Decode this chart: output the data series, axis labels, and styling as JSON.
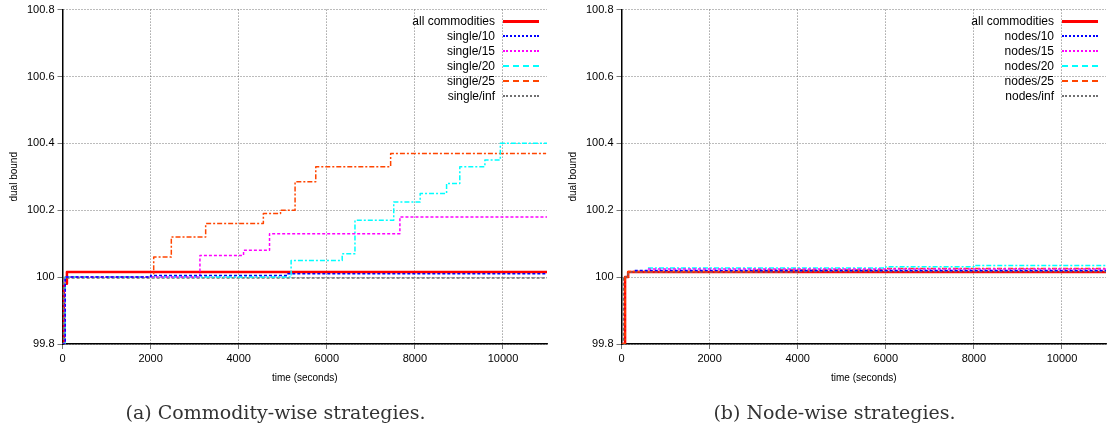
{
  "chart_data": [
    {
      "type": "step",
      "title": "(a) Commodity-wise strategies.",
      "xlabel": "time (seconds)",
      "ylabel": "dual bound",
      "xlim": [
        0,
        11000
      ],
      "xticks": [
        0,
        2000,
        4000,
        6000,
        8000,
        10000
      ],
      "ylim": [
        99.8,
        100.8
      ],
      "yticks": [
        99.8,
        100,
        100.2,
        100.4,
        100.6,
        100.8
      ],
      "grid": true,
      "legend": "top right",
      "marker": "none",
      "series": [
        {
          "name": "all commodities",
          "color": "#ff0000",
          "line_style": "solid",
          "x": [
            0,
            30,
            100,
            11000
          ],
          "values": [
            99.8,
            99.98,
            100.015,
            100.015
          ]
        },
        {
          "name": "single/10",
          "color": "#0000ff",
          "line_style": "dotted",
          "x": [
            0,
            60,
            2000,
            5100,
            11000
          ],
          "values": [
            99.8,
            100,
            100.005,
            100.01,
            100.01
          ]
        },
        {
          "name": "single/15",
          "color": "#ff00ff",
          "line_style": "dotted",
          "x": [
            0,
            60,
            3120,
            4110,
            4700,
            7660,
            11000
          ],
          "values": [
            99.8,
            100,
            100.065,
            100.08,
            100.13,
            100.18,
            100.18
          ]
        },
        {
          "name": "single/20",
          "color": "#00ffff",
          "line_style": "dashed",
          "x": [
            0,
            60,
            5190,
            6350,
            6640,
            7520,
            8120,
            8720,
            9020,
            9590,
            9940,
            11000
          ],
          "values": [
            99.8,
            100,
            100.05,
            100.07,
            100.17,
            100.225,
            100.25,
            100.28,
            100.33,
            100.35,
            100.4,
            100.4
          ]
        },
        {
          "name": "single/25",
          "color": "#ff4500",
          "line_style": "dashed",
          "x": [
            0,
            60,
            2070,
            2470,
            3250,
            4560,
            4950,
            5280,
            5750,
            7450,
            10980
          ],
          "values": [
            99.8,
            100,
            100.06,
            100.12,
            100.16,
            100.19,
            100.2,
            100.285,
            100.33,
            100.37,
            100.37
          ]
        },
        {
          "name": "single/inf",
          "color": "#707070",
          "line_style": "dotted",
          "x": [
            0,
            20,
            11000
          ],
          "values": [
            99.8,
            99.997,
            99.997
          ]
        }
      ]
    },
    {
      "type": "step",
      "title": "(b) Node-wise strategies.",
      "xlabel": "time (seconds)",
      "ylabel": "dual bound",
      "xlim": [
        0,
        11000
      ],
      "xticks": [
        0,
        2000,
        4000,
        6000,
        8000,
        10000
      ],
      "ylim": [
        99.8,
        100.8
      ],
      "yticks": [
        99.8,
        100,
        100.2,
        100.4,
        100.6,
        100.8
      ],
      "grid": true,
      "legend": "top right",
      "marker": "none",
      "series": [
        {
          "name": "all commodities",
          "color": "#ff0000",
          "line_style": "solid",
          "x": [
            0,
            80,
            150,
            11000
          ],
          "values": [
            99.8,
            100,
            100.015,
            100.015
          ]
        },
        {
          "name": "nodes/10",
          "color": "#0000ff",
          "line_style": "dotted",
          "x": [
            300,
            6000,
            11000
          ],
          "values": [
            100.02,
            100.02,
            100.02
          ]
        },
        {
          "name": "nodes/15",
          "color": "#ff00ff",
          "line_style": "dotted",
          "x": [
            600,
            11000
          ],
          "values": [
            100.024,
            100.024
          ]
        },
        {
          "name": "nodes/20",
          "color": "#00ffff",
          "line_style": "dashed",
          "x": [
            600,
            6000,
            8000,
            11000
          ],
          "values": [
            100.027,
            100.031,
            100.035,
            100.036
          ]
        },
        {
          "name": "nodes/25",
          "color": "#ff4500",
          "line_style": "dashed",
          "x": [
            0,
            80,
            150,
            3000,
            6000,
            11000
          ],
          "values": [
            99.8,
            100,
            100.017,
            100.021,
            100.026,
            100.027
          ]
        },
        {
          "name": "nodes/inf",
          "color": "#707070",
          "line_style": "dotted",
          "x": [
            0,
            40,
            150,
            4000,
            11000
          ],
          "values": [
            99.8,
            100,
            100.015,
            100.017,
            100.017
          ]
        }
      ]
    }
  ]
}
